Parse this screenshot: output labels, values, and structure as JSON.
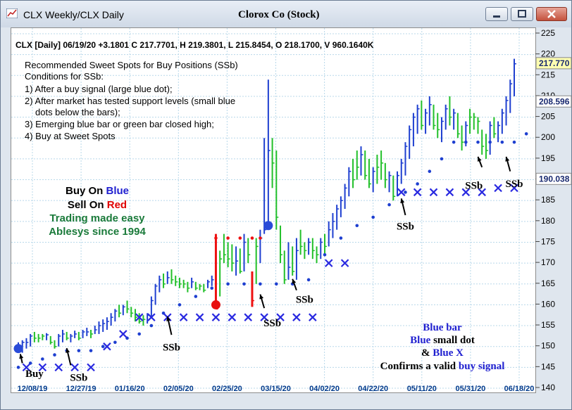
{
  "window": {
    "title": "CLX Weekly/CLX Daily",
    "chart_title": "Clorox Co (Stock)",
    "icons": [
      "app-chart-icon",
      "minimize-icon",
      "maximize-icon",
      "close-icon"
    ]
  },
  "header_line": "CLX [Daily] 06/19/20  +3.1801 C 217.7701, H 219.3801, L 215.8454, O 218.1700, V 960.1640K",
  "notes": [
    "Recommended Sweet Spots for Buy Positions (SSb)",
    "Conditions for SSb:",
    "1) After a buy signal (large blue dot);",
    "2) After market has tested support levels (small blue",
    "dots below the bars);",
    "3) Emerging blue bar or green bar closed high;",
    "4) Buy at Sweet Spots"
  ],
  "branding": {
    "buy_prefix": "Buy On ",
    "buy_word": "Blue",
    "sell_prefix": "Sell On ",
    "sell_word": "Red",
    "line3": "Trading made easy",
    "line4": "Ablesys since 1994",
    "blue": "#2020d0",
    "red": "#e00000",
    "green": "#1a7a3a"
  },
  "legend_box": {
    "line1": "Blue bar",
    "line2_color": "Blue",
    "line2_rest": " small dot",
    "line3_amp": "& ",
    "line3_color": "Blue X",
    "line4_prefix": "Confirms a valid ",
    "line4_color": "buy signal"
  },
  "chart_data": {
    "type": "bar",
    "title": "Clorox Co (Stock)",
    "ylim": [
      140,
      225
    ],
    "y_ticks": [
      140,
      145,
      150,
      155,
      160,
      165,
      170,
      175,
      180,
      185,
      190,
      195,
      200,
      205,
      210,
      215,
      220,
      225
    ],
    "x_ticks": [
      "12/08/19",
      "12/27/19",
      "01/16/20",
      "02/05/20",
      "02/25/20",
      "03/15/20",
      "04/02/20",
      "04/22/20",
      "05/11/20",
      "05/31/20",
      "06/18/20"
    ],
    "price_labels": [
      "217.770",
      "208.596",
      "190.038"
    ],
    "price_label_values": [
      217.77,
      208.596,
      190.038
    ],
    "price_label_colors": [
      "#ffffb0",
      "#ffffff",
      "#ffffff"
    ],
    "colors": {
      "blue": "#1e3fd0",
      "green": "#22c02a",
      "red": "#ee1111",
      "x_marker": "#2929e0"
    },
    "bars": [
      [
        149,
        151,
        150,
        "b"
      ],
      [
        148.5,
        151.5,
        151,
        "b"
      ],
      [
        149.5,
        152,
        151,
        "b"
      ],
      [
        150,
        153,
        152.5,
        "b"
      ],
      [
        151,
        153.5,
        152,
        "g"
      ],
      [
        151,
        153,
        152,
        "g"
      ],
      [
        151.5,
        153,
        152.5,
        "g"
      ],
      [
        151.5,
        153.2,
        152.8,
        "b"
      ],
      [
        150.5,
        152.5,
        151,
        "g"
      ],
      [
        149.5,
        151.5,
        150,
        "g"
      ],
      [
        150,
        153,
        152.5,
        "b"
      ],
      [
        151,
        154,
        153,
        "b"
      ],
      [
        151.5,
        153.5,
        152,
        "g"
      ],
      [
        151,
        153,
        152.5,
        "b"
      ],
      [
        152,
        153.8,
        153,
        "b"
      ],
      [
        151.5,
        153.5,
        152,
        "g"
      ],
      [
        152,
        154,
        153.5,
        "b"
      ],
      [
        152.5,
        154.5,
        153.5,
        "b"
      ],
      [
        152,
        154,
        153,
        "g"
      ],
      [
        153,
        155,
        154,
        "b"
      ],
      [
        153,
        156,
        155,
        "b"
      ],
      [
        153.5,
        156.5,
        155.5,
        "b"
      ],
      [
        154,
        157,
        156,
        "b"
      ],
      [
        155,
        158,
        157,
        "b"
      ],
      [
        156,
        159,
        158.5,
        "b"
      ],
      [
        157,
        160,
        158,
        "g"
      ],
      [
        157.5,
        160,
        159.5,
        "b"
      ],
      [
        158,
        161,
        159,
        "g"
      ],
      [
        157,
        159.5,
        158,
        "g"
      ],
      [
        156,
        159,
        157,
        "g"
      ],
      [
        155.5,
        158,
        156,
        "g"
      ],
      [
        155,
        157.5,
        156.5,
        "g"
      ],
      [
        155.5,
        158,
        157.5,
        "b"
      ],
      [
        157,
        162,
        161,
        "b"
      ],
      [
        160,
        165,
        164.5,
        "b"
      ],
      [
        163,
        167,
        166,
        "b"
      ],
      [
        164,
        167.5,
        165,
        "g"
      ],
      [
        165,
        168,
        166.5,
        "b"
      ],
      [
        165,
        168.5,
        166,
        "g"
      ],
      [
        164.5,
        167,
        165.5,
        "g"
      ],
      [
        164,
        166.5,
        165,
        "g"
      ],
      [
        164,
        166,
        165,
        "g"
      ],
      [
        163,
        165.5,
        164,
        "g"
      ],
      [
        164,
        166.5,
        165.5,
        "b"
      ],
      [
        163.5,
        165.5,
        164,
        "g"
      ],
      [
        163.5,
        165,
        164.5,
        "g"
      ],
      [
        163,
        165,
        163.5,
        "g"
      ],
      [
        164,
        166,
        165.5,
        "b"
      ],
      [
        164.5,
        167,
        166,
        "b"
      ],
      [
        160,
        177,
        159,
        "r"
      ],
      [
        162,
        173,
        171,
        "g"
      ],
      [
        170,
        177,
        172,
        "g"
      ],
      [
        169,
        175,
        171,
        "g"
      ],
      [
        168,
        174.5,
        170,
        "g"
      ],
      [
        167,
        174,
        170.5,
        "b"
      ],
      [
        167.5,
        173.5,
        168,
        "g"
      ],
      [
        168,
        177,
        175,
        "b"
      ],
      [
        170,
        176,
        172,
        "g"
      ],
      [
        159.5,
        168,
        161,
        "r"
      ],
      [
        165,
        176,
        174,
        "g"
      ],
      [
        170,
        178,
        176,
        "b"
      ],
      [
        177,
        200,
        178,
        "b"
      ],
      [
        180,
        214,
        197,
        "b"
      ],
      [
        188,
        200,
        194,
        "g"
      ],
      [
        178,
        197,
        181,
        "g"
      ],
      [
        170,
        179,
        172,
        "g"
      ],
      [
        165,
        173,
        166,
        "g"
      ],
      [
        166,
        175,
        169,
        "b"
      ],
      [
        167,
        174,
        168,
        "g"
      ],
      [
        166,
        176,
        173,
        "b"
      ],
      [
        172,
        178,
        174,
        "g"
      ],
      [
        171,
        175,
        173,
        "g"
      ],
      [
        172,
        176,
        175,
        "b"
      ],
      [
        171,
        176,
        173,
        "g"
      ],
      [
        170,
        174,
        172,
        "g"
      ],
      [
        171,
        176,
        175,
        "b"
      ],
      [
        172,
        177,
        174,
        "g"
      ],
      [
        174,
        180,
        178,
        "b"
      ],
      [
        176,
        182,
        180,
        "b"
      ],
      [
        178,
        184,
        183,
        "b"
      ],
      [
        181,
        186,
        185,
        "b"
      ],
      [
        183,
        189,
        188,
        "b"
      ],
      [
        186,
        193,
        192,
        "b"
      ],
      [
        188,
        195,
        190,
        "g"
      ],
      [
        190,
        197,
        193,
        "g"
      ],
      [
        191,
        198,
        196,
        "b"
      ],
      [
        190,
        197,
        191,
        "g"
      ],
      [
        188,
        195,
        189,
        "g"
      ],
      [
        187,
        193,
        192,
        "b"
      ],
      [
        189,
        196,
        193,
        "g"
      ],
      [
        190,
        197,
        194,
        "g"
      ],
      [
        188,
        194,
        190,
        "g"
      ],
      [
        187,
        192,
        191,
        "b"
      ],
      [
        185,
        191,
        186,
        "g"
      ],
      [
        186,
        192,
        191,
        "b"
      ],
      [
        189,
        195,
        194,
        "b"
      ],
      [
        191,
        199,
        198,
        "b"
      ],
      [
        195,
        203,
        202,
        "b"
      ],
      [
        198,
        206,
        205,
        "b"
      ],
      [
        201,
        208,
        207,
        "b"
      ],
      [
        202,
        209,
        203,
        "g"
      ],
      [
        201,
        207,
        206,
        "b"
      ],
      [
        203,
        210,
        208,
        "b"
      ],
      [
        202,
        208,
        203,
        "g"
      ],
      [
        200,
        206,
        202,
        "g"
      ],
      [
        199,
        205,
        204,
        "b"
      ],
      [
        202,
        208,
        207,
        "b"
      ],
      [
        203,
        210,
        205,
        "g"
      ],
      [
        202,
        207,
        206,
        "b"
      ],
      [
        200,
        206,
        201,
        "g"
      ],
      [
        197,
        203,
        199,
        "g"
      ],
      [
        198,
        204,
        203,
        "b"
      ],
      [
        201,
        207,
        205,
        "g"
      ],
      [
        202,
        206,
        205,
        "g"
      ],
      [
        201,
        205,
        204,
        "g"
      ],
      [
        196,
        202,
        198,
        "g"
      ],
      [
        195,
        201,
        197,
        "g"
      ],
      [
        196,
        204,
        203,
        "b"
      ],
      [
        200,
        205,
        201,
        "g"
      ],
      [
        199,
        204,
        203,
        "b"
      ],
      [
        201,
        207,
        206,
        "b"
      ],
      [
        203,
        210,
        209,
        "b"
      ],
      [
        206,
        214,
        213,
        "b"
      ],
      [
        210,
        219,
        217.8,
        "b"
      ]
    ],
    "support_dots": [
      [
        0,
        145
      ],
      [
        3,
        146
      ],
      [
        6,
        147
      ],
      [
        9,
        148
      ],
      [
        12,
        149
      ],
      [
        15,
        149
      ],
      [
        18,
        149
      ],
      [
        21,
        150
      ],
      [
        24,
        151
      ],
      [
        27,
        152
      ],
      [
        30,
        153
      ],
      [
        33,
        155
      ],
      [
        36,
        158
      ],
      [
        40,
        160
      ],
      [
        44,
        162
      ],
      [
        48,
        164
      ],
      [
        52,
        165
      ],
      [
        56,
        165
      ],
      [
        60,
        165
      ],
      [
        64,
        165
      ],
      [
        68,
        165
      ],
      [
        72,
        166
      ],
      [
        76,
        172
      ],
      [
        80,
        176
      ],
      [
        84,
        179
      ],
      [
        88,
        181
      ],
      [
        92,
        184
      ],
      [
        96,
        187
      ],
      [
        99,
        189
      ],
      [
        102,
        192
      ],
      [
        105,
        195
      ],
      [
        108,
        199
      ],
      [
        111,
        199
      ],
      [
        114,
        199
      ],
      [
        117,
        199
      ],
      [
        120,
        199
      ],
      [
        123,
        199
      ],
      [
        126,
        201
      ],
      [
        129,
        204
      ],
      [
        131,
        208
      ]
    ],
    "resistance_dots": [
      [
        49,
        176
      ],
      [
        52,
        176
      ],
      [
        55,
        176
      ],
      [
        58,
        176
      ],
      [
        60,
        176
      ]
    ],
    "x_markers": [
      [
        2,
        145
      ],
      [
        6,
        145
      ],
      [
        10,
        145
      ],
      [
        14,
        145
      ],
      [
        18,
        145
      ],
      [
        22,
        150
      ],
      [
        26,
        153
      ],
      [
        30,
        157
      ],
      [
        33,
        157
      ],
      [
        37,
        157
      ],
      [
        41,
        157
      ],
      [
        45,
        157
      ],
      [
        49,
        157
      ],
      [
        53,
        157
      ],
      [
        57,
        157
      ],
      [
        61,
        157
      ],
      [
        65,
        157
      ],
      [
        69,
        157
      ],
      [
        73,
        157
      ],
      [
        77,
        170
      ],
      [
        81,
        170
      ],
      [
        95,
        187
      ],
      [
        99,
        187
      ],
      [
        103,
        187
      ],
      [
        107,
        187
      ],
      [
        111,
        187
      ],
      [
        115,
        187
      ],
      [
        119,
        188
      ],
      [
        123,
        188
      ]
    ],
    "buy_signals_large_dot": [
      {
        "i": 0,
        "y": 149.5,
        "color": "#2a4bd8"
      },
      {
        "i": 49,
        "y": 160,
        "color": "#e81010"
      },
      {
        "i": 62,
        "y": 179,
        "color": "#2a4bd8"
      }
    ],
    "annotations": [
      {
        "text": "Buy",
        "i": 4,
        "y": 142.7,
        "ti": 1,
        "ty": 146,
        "ai": 0.5,
        "ay": 148.2
      },
      {
        "text": "SSb",
        "i": 15,
        "y": 141.8,
        "ti": 13,
        "ty": 145.5,
        "ai": 12,
        "ay": 149.6
      },
      {
        "text": "SSb",
        "i": 38,
        "y": 149,
        "ti": 38,
        "ty": 152.8,
        "ai": 37,
        "ay": 157.2
      },
      {
        "text": "SSb",
        "i": 63,
        "y": 154.8,
        "ti": 61,
        "ty": 159.2,
        "ai": 60,
        "ay": 162.5
      },
      {
        "text": "SSb",
        "i": 71,
        "y": 160.5,
        "ti": 69,
        "ty": 163.5,
        "ai": 68,
        "ay": 166.2
      },
      {
        "text": "SSb",
        "i": 96,
        "y": 178,
        "ti": 96,
        "ty": 181.5,
        "ai": 95,
        "ay": 185.5
      },
      {
        "text": "SSb",
        "i": 113,
        "y": 187.8,
        "ti": 115,
        "ty": 193,
        "ai": 114,
        "ay": 195.5
      },
      {
        "text": "SSb",
        "i": 123,
        "y": 188.2,
        "ti": 122,
        "ty": 192,
        "ai": 121,
        "ay": 195.5
      }
    ]
  }
}
